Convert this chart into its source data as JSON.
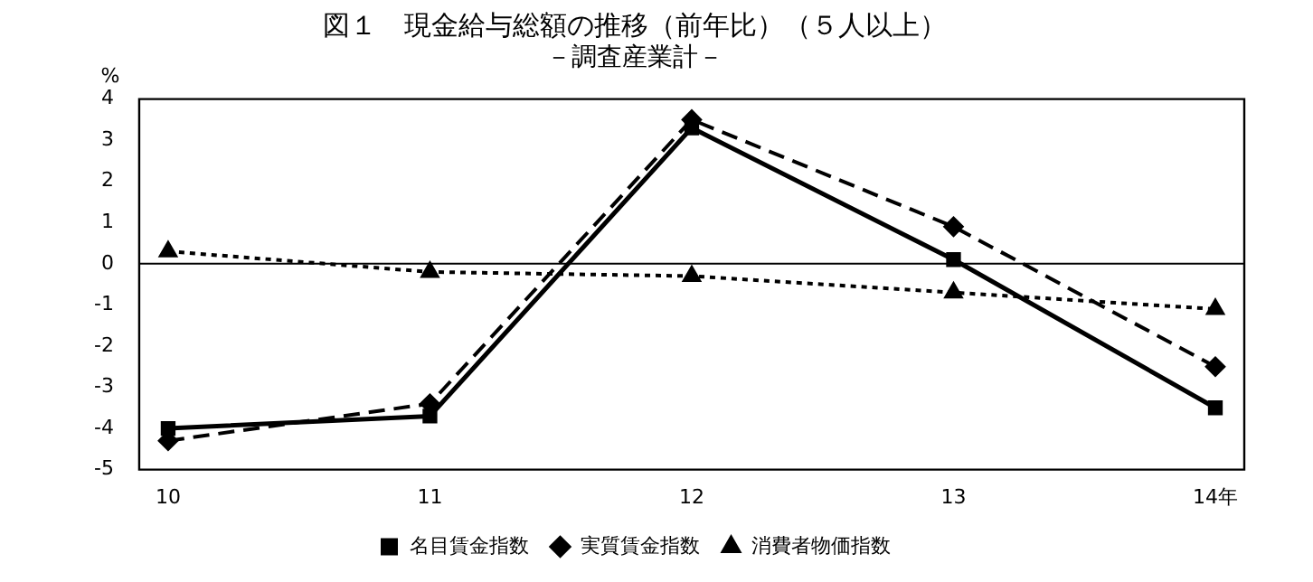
{
  "chart_data": {
    "type": "line",
    "title": "図１　現金給与総額の推移（前年比）（５人以上）",
    "subtitle": "－調査産業計－",
    "ylabel": "%",
    "categories": [
      "10",
      "11",
      "12",
      "13",
      "14年"
    ],
    "series": [
      {
        "name": "名目賃金指数",
        "color": "#000000",
        "marker": "square",
        "line_style": "solid",
        "values": [
          -4.0,
          -3.7,
          3.3,
          0.1,
          -3.5
        ]
      },
      {
        "name": "実質賃金指数",
        "color": "#000000",
        "marker": "diamond",
        "line_style": "dashed",
        "values": [
          -4.3,
          -3.4,
          3.5,
          0.9,
          -2.5
        ]
      },
      {
        "name": "消費者物価指数",
        "color": "#000000",
        "marker": "triangle",
        "line_style": "dotted",
        "values": [
          0.3,
          -0.2,
          -0.3,
          -0.7,
          -1.1
        ]
      }
    ],
    "ylim": [
      -5,
      4
    ],
    "yticks": [
      -5,
      -4,
      -3,
      -2,
      -1,
      0,
      1,
      2,
      3,
      4
    ],
    "grid": false,
    "legend": "bottom",
    "ref_lines": [
      {
        "axis": "y",
        "value": 0
      }
    ]
  }
}
